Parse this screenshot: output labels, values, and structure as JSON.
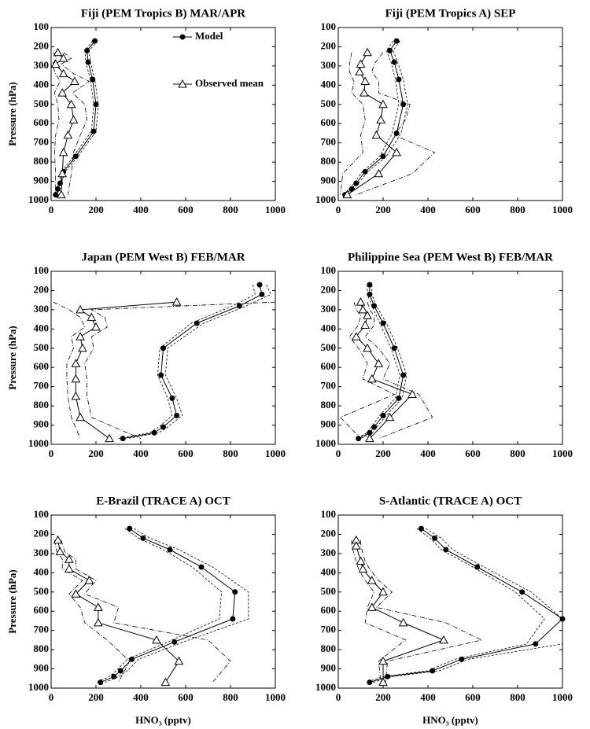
{
  "chart_data": [
    {
      "type": "profile",
      "title": "Fiji (PEM Tropics B) MAR/APR",
      "ylabel": "Pressure (hPa)",
      "xlim": [
        0,
        1000
      ],
      "ylim": [
        1000,
        100
      ],
      "xticks": [
        0,
        200,
        400,
        600,
        800,
        1000
      ],
      "yticks": [
        100,
        200,
        300,
        400,
        500,
        600,
        700,
        800,
        900,
        1000
      ],
      "series": [
        {
          "name": "Model",
          "marker": "circle",
          "color": "#000000",
          "bound_style": "dashed",
          "y": [
            170,
            220,
            280,
            370,
            500,
            640,
            770,
            850,
            910,
            940,
            970
          ],
          "x": [
            195,
            160,
            165,
            185,
            200,
            190,
            110,
            55,
            40,
            30,
            20
          ],
          "x_lower": [
            185,
            150,
            155,
            175,
            190,
            180,
            100,
            48,
            34,
            25,
            15
          ],
          "x_upper": [
            205,
            170,
            175,
            195,
            210,
            200,
            120,
            62,
            46,
            35,
            25
          ]
        },
        {
          "name": "Observed mean",
          "marker": "triangle",
          "color": "#000000",
          "bound_style": "dashdot",
          "y": [
            230,
            260,
            290,
            340,
            380,
            440,
            500,
            580,
            660,
            750,
            860,
            970
          ],
          "x": [
            30,
            55,
            20,
            55,
            105,
            50,
            90,
            100,
            75,
            55,
            50,
            45
          ],
          "x_lower": [
            10,
            25,
            5,
            20,
            40,
            15,
            30,
            35,
            20,
            15,
            20,
            20
          ],
          "x_upper": [
            55,
            90,
            45,
            100,
            170,
            95,
            150,
            160,
            130,
            100,
            90,
            75
          ]
        }
      ]
    },
    {
      "type": "profile",
      "title": "Fiji (PEM Tropics A) SEP",
      "xlim": [
        0,
        1000
      ],
      "ylim": [
        1000,
        100
      ],
      "xticks": [
        0,
        200,
        400,
        600,
        800,
        1000
      ],
      "yticks": [
        100,
        200,
        300,
        400,
        500,
        600,
        700,
        800,
        900,
        1000
      ],
      "series": [
        {
          "marker": "circle",
          "color": "#000000",
          "bound_style": "dashed",
          "y": [
            170,
            220,
            280,
            370,
            500,
            650,
            770,
            850,
            910,
            940,
            970
          ],
          "x": [
            260,
            230,
            250,
            270,
            290,
            260,
            200,
            120,
            80,
            60,
            30
          ],
          "x_lower": [
            245,
            215,
            235,
            255,
            270,
            240,
            185,
            108,
            70,
            50,
            22
          ],
          "x_upper": [
            275,
            245,
            265,
            290,
            310,
            280,
            215,
            132,
            90,
            70,
            38
          ]
        },
        {
          "marker": "triangle",
          "color": "#000000",
          "bound_style": "dashdot",
          "y": [
            230,
            290,
            330,
            380,
            440,
            500,
            580,
            660,
            750,
            860,
            970
          ],
          "x": [
            130,
            100,
            95,
            120,
            115,
            200,
            190,
            170,
            260,
            180,
            40
          ],
          "x_lower": [
            60,
            50,
            50,
            70,
            60,
            110,
            120,
            100,
            110,
            20,
            10
          ],
          "x_upper": [
            200,
            160,
            150,
            180,
            180,
            320,
            300,
            250,
            430,
            330,
            80
          ]
        }
      ]
    },
    {
      "type": "profile",
      "title": "Japan (PEM West B) FEB/MAR",
      "ylabel": "Pressure (hPa)",
      "xlim": [
        0,
        1000
      ],
      "ylim": [
        1000,
        100
      ],
      "xticks": [
        0,
        200,
        400,
        600,
        800,
        1000
      ],
      "yticks": [
        100,
        200,
        300,
        400,
        500,
        600,
        700,
        800,
        900,
        1000
      ],
      "series": [
        {
          "marker": "circle",
          "color": "#000000",
          "bound_style": "dashed",
          "y": [
            170,
            220,
            280,
            370,
            500,
            640,
            760,
            850,
            910,
            940,
            970
          ],
          "x": [
            930,
            940,
            840,
            650,
            500,
            490,
            540,
            560,
            500,
            460,
            320
          ],
          "x_lower": [
            900,
            910,
            810,
            625,
            485,
            475,
            520,
            540,
            480,
            440,
            300
          ],
          "x_upper": [
            960,
            980,
            870,
            680,
            520,
            510,
            560,
            585,
            520,
            480,
            340
          ]
        },
        {
          "marker": "triangle",
          "color": "#000000",
          "bound_style": "dashdot",
          "y": [
            260,
            300,
            340,
            390,
            440,
            500,
            580,
            660,
            750,
            860,
            970
          ],
          "x": [
            560,
            130,
            180,
            200,
            130,
            140,
            110,
            110,
            110,
            130,
            260
          ],
          "x_lower": [
            10,
            80,
            130,
            150,
            90,
            100,
            70,
            70,
            75,
            90,
            130
          ],
          "x_upper": [
            1000,
            180,
            240,
            250,
            180,
            190,
            150,
            160,
            160,
            180,
            400
          ]
        }
      ]
    },
    {
      "type": "profile",
      "title": "Philippine Sea (PEM West B) FEB/MAR",
      "xlim": [
        0,
        1000
      ],
      "ylim": [
        1000,
        100
      ],
      "xticks": [
        0,
        200,
        400,
        600,
        800,
        1000
      ],
      "yticks": [
        100,
        200,
        300,
        400,
        500,
        600,
        700,
        800,
        900,
        1000
      ],
      "series": [
        {
          "marker": "circle",
          "color": "#000000",
          "bound_style": "dashed",
          "y": [
            170,
            220,
            280,
            370,
            500,
            640,
            760,
            850,
            910,
            940,
            970
          ],
          "x": [
            140,
            140,
            160,
            200,
            250,
            290,
            270,
            200,
            160,
            140,
            90
          ],
          "x_lower": [
            130,
            130,
            150,
            185,
            235,
            275,
            255,
            185,
            148,
            128,
            80
          ],
          "x_upper": [
            150,
            150,
            170,
            215,
            265,
            305,
            285,
            215,
            172,
            152,
            100
          ]
        },
        {
          "marker": "triangle",
          "color": "#000000",
          "bound_style": "dashdot",
          "y": [
            260,
            300,
            330,
            380,
            440,
            500,
            580,
            660,
            740,
            860,
            970
          ],
          "x": [
            100,
            110,
            130,
            120,
            80,
            130,
            180,
            150,
            330,
            230,
            140
          ],
          "x_lower": [
            70,
            80,
            100,
            90,
            50,
            90,
            130,
            110,
            250,
            10,
            100
          ],
          "x_upper": [
            130,
            140,
            160,
            160,
            120,
            180,
            230,
            200,
            360,
            420,
            180
          ]
        }
      ]
    },
    {
      "type": "profile",
      "title": "E-Brazil (TRACE A) OCT",
      "ylabel": "Pressure (hPa)",
      "xlabel": "HNO₃ (pptv)",
      "xlim": [
        0,
        1000
      ],
      "ylim": [
        1000,
        100
      ],
      "xticks": [
        0,
        200,
        400,
        600,
        800,
        1000
      ],
      "yticks": [
        100,
        200,
        300,
        400,
        500,
        600,
        700,
        800,
        900,
        1000
      ],
      "series": [
        {
          "marker": "circle",
          "color": "#000000",
          "bound_style": "dashed",
          "y": [
            170,
            220,
            280,
            370,
            500,
            640,
            760,
            850,
            910,
            940,
            970
          ],
          "x": [
            350,
            410,
            530,
            670,
            820,
            810,
            550,
            360,
            310,
            280,
            220
          ],
          "x_lower": [
            330,
            390,
            500,
            630,
            760,
            750,
            520,
            340,
            290,
            260,
            200
          ],
          "x_upper": [
            370,
            440,
            570,
            720,
            880,
            880,
            590,
            390,
            340,
            300,
            240
          ]
        },
        {
          "marker": "triangle",
          "color": "#000000",
          "bound_style": "dashdot",
          "y": [
            230,
            290,
            330,
            380,
            440,
            510,
            580,
            660,
            750,
            860,
            970
          ],
          "x": [
            30,
            40,
            80,
            80,
            170,
            110,
            210,
            210,
            470,
            570,
            510
          ],
          "x_lower": [
            15,
            25,
            50,
            50,
            140,
            80,
            130,
            150,
            250,
            350,
            300
          ],
          "x_upper": [
            45,
            60,
            110,
            110,
            200,
            150,
            300,
            280,
            700,
            800,
            720
          ]
        }
      ]
    },
    {
      "type": "profile",
      "title": "S-Atlantic (TRACE A) OCT",
      "xlabel": "HNO₃ (pptv)",
      "xlim": [
        0,
        1000
      ],
      "ylim": [
        1000,
        100
      ],
      "xticks": [
        0,
        200,
        400,
        600,
        800,
        1000
      ],
      "yticks": [
        100,
        200,
        300,
        400,
        500,
        600,
        700,
        800,
        900,
        1000
      ],
      "series": [
        {
          "marker": "circle",
          "color": "#000000",
          "bound_style": "dashed",
          "y": [
            170,
            220,
            280,
            370,
            500,
            640,
            770,
            850,
            910,
            940,
            970
          ],
          "x": [
            370,
            430,
            480,
            620,
            820,
            1000,
            880,
            550,
            420,
            220,
            140
          ],
          "x_lower": [
            350,
            410,
            460,
            600,
            790,
            920,
            840,
            520,
            400,
            200,
            125
          ],
          "x_upper": [
            390,
            460,
            510,
            650,
            860,
            1000,
            1000,
            580,
            450,
            240,
            155
          ]
        },
        {
          "marker": "triangle",
          "color": "#000000",
          "bound_style": "dashdot",
          "y": [
            230,
            260,
            340,
            380,
            440,
            500,
            580,
            660,
            750,
            860,
            970
          ],
          "x": [
            80,
            80,
            100,
            110,
            150,
            200,
            150,
            290,
            470,
            200,
            200
          ],
          "x_lower": [
            60,
            60,
            80,
            90,
            120,
            160,
            130,
            120,
            300,
            180,
            190
          ],
          "x_upper": [
            100,
            100,
            120,
            140,
            180,
            240,
            170,
            480,
            640,
            220,
            210
          ]
        }
      ]
    }
  ],
  "legend": {
    "entries": [
      "Model",
      "Observed mean"
    ]
  }
}
